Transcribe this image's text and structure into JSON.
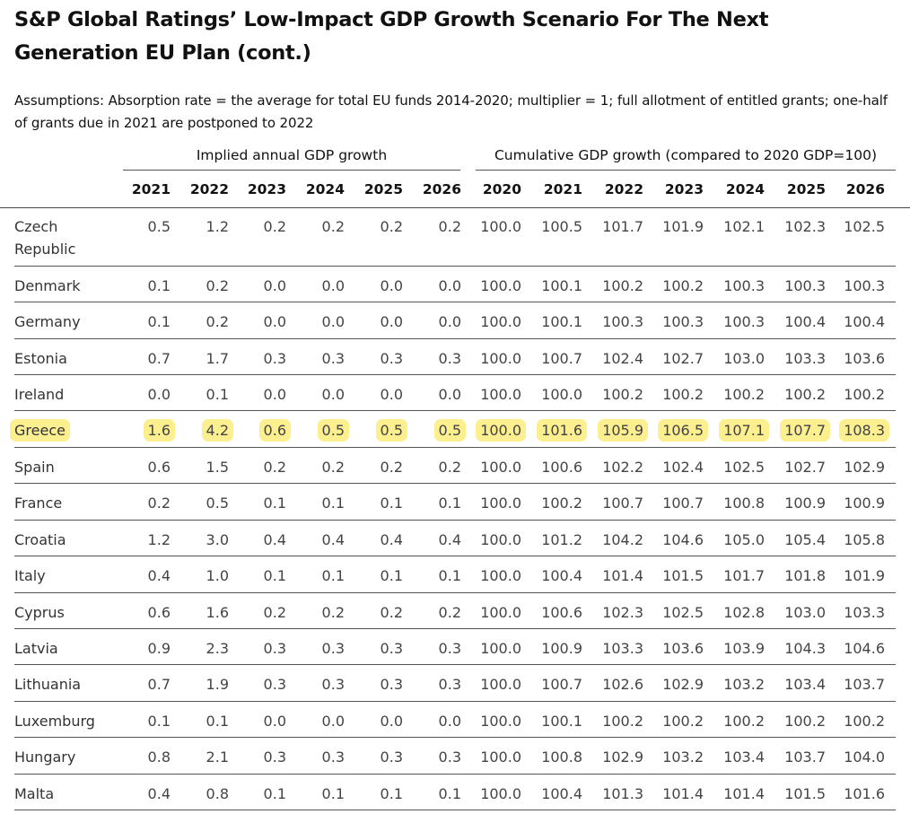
{
  "title": "S&P Global Ratings’ Low-Impact GDP Growth Scenario For The Next Generation EU Plan  (cont.)",
  "assumptions": "Assumptions: Absorption rate = the average for total EU funds 2014-2020; multiplier = 1; full allotment of entitled grants; one-half of grants due in 2021 are postponed to 2022",
  "group_headers": {
    "annual": "Implied annual GDP growth",
    "cumulative": "Cumulative GDP growth (compared to 2020 GDP=100)"
  },
  "columns": [
    "2021",
    "2022",
    "2023",
    "2024",
    "2025",
    "2026",
    "2020",
    "2021",
    "2022",
    "2023",
    "2024",
    "2025",
    "2026"
  ],
  "highlight_color": "#fcef8f",
  "rows": [
    {
      "country": "Czech Republic",
      "values": [
        "0.5",
        "1.2",
        "0.2",
        "0.2",
        "0.2",
        "0.2",
        "100.0",
        "100.5",
        "101.7",
        "101.9",
        "102.1",
        "102.3",
        "102.5"
      ]
    },
    {
      "country": "Denmark",
      "values": [
        "0.1",
        "0.2",
        "0.0",
        "0.0",
        "0.0",
        "0.0",
        "100.0",
        "100.1",
        "100.2",
        "100.2",
        "100.3",
        "100.3",
        "100.3"
      ]
    },
    {
      "country": "Germany",
      "values": [
        "0.1",
        "0.2",
        "0.0",
        "0.0",
        "0.0",
        "0.0",
        "100.0",
        "100.1",
        "100.3",
        "100.3",
        "100.3",
        "100.4",
        "100.4"
      ]
    },
    {
      "country": "Estonia",
      "values": [
        "0.7",
        "1.7",
        "0.3",
        "0.3",
        "0.3",
        "0.3",
        "100.0",
        "100.7",
        "102.4",
        "102.7",
        "103.0",
        "103.3",
        "103.6"
      ]
    },
    {
      "country": "Ireland",
      "values": [
        "0.0",
        "0.1",
        "0.0",
        "0.0",
        "0.0",
        "0.0",
        "100.0",
        "100.0",
        "100.2",
        "100.2",
        "100.2",
        "100.2",
        "100.2"
      ]
    },
    {
      "country": "Greece",
      "highlight": true,
      "values": [
        "1.6",
        "4.2",
        "0.6",
        "0.5",
        "0.5",
        "0.5",
        "100.0",
        "101.6",
        "105.9",
        "106.5",
        "107.1",
        "107.7",
        "108.3"
      ]
    },
    {
      "country": "Spain",
      "values": [
        "0.6",
        "1.5",
        "0.2",
        "0.2",
        "0.2",
        "0.2",
        "100.0",
        "100.6",
        "102.2",
        "102.4",
        "102.5",
        "102.7",
        "102.9"
      ]
    },
    {
      "country": "France",
      "values": [
        "0.2",
        "0.5",
        "0.1",
        "0.1",
        "0.1",
        "0.1",
        "100.0",
        "100.2",
        "100.7",
        "100.7",
        "100.8",
        "100.9",
        "100.9"
      ]
    },
    {
      "country": "Croatia",
      "values": [
        "1.2",
        "3.0",
        "0.4",
        "0.4",
        "0.4",
        "0.4",
        "100.0",
        "101.2",
        "104.2",
        "104.6",
        "105.0",
        "105.4",
        "105.8"
      ]
    },
    {
      "country": "Italy",
      "values": [
        "0.4",
        "1.0",
        "0.1",
        "0.1",
        "0.1",
        "0.1",
        "100.0",
        "100.4",
        "101.4",
        "101.5",
        "101.7",
        "101.8",
        "101.9"
      ]
    },
    {
      "country": "Cyprus",
      "values": [
        "0.6",
        "1.6",
        "0.2",
        "0.2",
        "0.2",
        "0.2",
        "100.0",
        "100.6",
        "102.3",
        "102.5",
        "102.8",
        "103.0",
        "103.3"
      ]
    },
    {
      "country": "Latvia",
      "values": [
        "0.9",
        "2.3",
        "0.3",
        "0.3",
        "0.3",
        "0.3",
        "100.0",
        "100.9",
        "103.3",
        "103.6",
        "103.9",
        "104.3",
        "104.6"
      ]
    },
    {
      "country": "Lithuania",
      "values": [
        "0.7",
        "1.9",
        "0.3",
        "0.3",
        "0.3",
        "0.3",
        "100.0",
        "100.7",
        "102.6",
        "102.9",
        "103.2",
        "103.4",
        "103.7"
      ]
    },
    {
      "country": "Luxemburg",
      "values": [
        "0.1",
        "0.1",
        "0.0",
        "0.0",
        "0.0",
        "0.0",
        "100.0",
        "100.1",
        "100.2",
        "100.2",
        "100.2",
        "100.2",
        "100.2"
      ]
    },
    {
      "country": "Hungary",
      "values": [
        "0.8",
        "2.1",
        "0.3",
        "0.3",
        "0.3",
        "0.3",
        "100.0",
        "100.8",
        "102.9",
        "103.2",
        "103.4",
        "103.7",
        "104.0"
      ]
    },
    {
      "country": "Malta",
      "values": [
        "0.4",
        "0.8",
        "0.1",
        "0.1",
        "0.1",
        "0.1",
        "100.0",
        "100.4",
        "101.3",
        "101.4",
        "101.4",
        "101.5",
        "101.6"
      ]
    }
  ]
}
